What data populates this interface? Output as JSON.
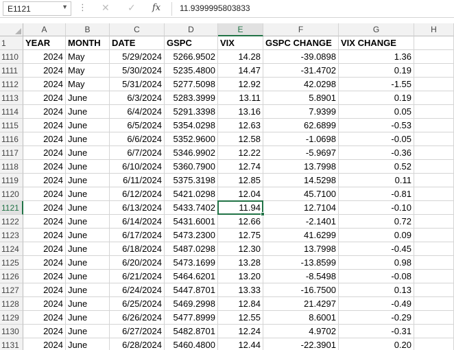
{
  "formula_bar": {
    "name_box": "E1121",
    "value": "11.9399995803833",
    "fx_label": "fx"
  },
  "columns": [
    "A",
    "B",
    "C",
    "D",
    "E",
    "F",
    "G",
    "H"
  ],
  "active_column": "E",
  "active_row": "1121",
  "header_row": {
    "row_number": "1",
    "cells": [
      "YEAR",
      "MONTH",
      "DATE",
      "GSPC",
      "VIX",
      "GSPC CHANGE",
      "VIX CHANGE",
      ""
    ]
  },
  "rows": [
    {
      "n": "1110",
      "year": "2024",
      "month": "May",
      "date": "5/29/2024",
      "gspc": "5266.9502",
      "vix": "14.28",
      "gspc_change": "-39.0898",
      "vix_change": "1.36"
    },
    {
      "n": "1111",
      "year": "2024",
      "month": "May",
      "date": "5/30/2024",
      "gspc": "5235.4800",
      "vix": "14.47",
      "gspc_change": "-31.4702",
      "vix_change": "0.19"
    },
    {
      "n": "1112",
      "year": "2024",
      "month": "May",
      "date": "5/31/2024",
      "gspc": "5277.5098",
      "vix": "12.92",
      "gspc_change": "42.0298",
      "vix_change": "-1.55"
    },
    {
      "n": "1113",
      "year": "2024",
      "month": "June",
      "date": "6/3/2024",
      "gspc": "5283.3999",
      "vix": "13.11",
      "gspc_change": "5.8901",
      "vix_change": "0.19"
    },
    {
      "n": "1114",
      "year": "2024",
      "month": "June",
      "date": "6/4/2024",
      "gspc": "5291.3398",
      "vix": "13.16",
      "gspc_change": "7.9399",
      "vix_change": "0.05"
    },
    {
      "n": "1115",
      "year": "2024",
      "month": "June",
      "date": "6/5/2024",
      "gspc": "5354.0298",
      "vix": "12.63",
      "gspc_change": "62.6899",
      "vix_change": "-0.53"
    },
    {
      "n": "1116",
      "year": "2024",
      "month": "June",
      "date": "6/6/2024",
      "gspc": "5352.9600",
      "vix": "12.58",
      "gspc_change": "-1.0698",
      "vix_change": "-0.05"
    },
    {
      "n": "1117",
      "year": "2024",
      "month": "June",
      "date": "6/7/2024",
      "gspc": "5346.9902",
      "vix": "12.22",
      "gspc_change": "-5.9697",
      "vix_change": "-0.36"
    },
    {
      "n": "1118",
      "year": "2024",
      "month": "June",
      "date": "6/10/2024",
      "gspc": "5360.7900",
      "vix": "12.74",
      "gspc_change": "13.7998",
      "vix_change": "0.52"
    },
    {
      "n": "1119",
      "year": "2024",
      "month": "June",
      "date": "6/11/2024",
      "gspc": "5375.3198",
      "vix": "12.85",
      "gspc_change": "14.5298",
      "vix_change": "0.11"
    },
    {
      "n": "1120",
      "year": "2024",
      "month": "June",
      "date": "6/12/2024",
      "gspc": "5421.0298",
      "vix": "12.04",
      "gspc_change": "45.7100",
      "vix_change": "-0.81"
    },
    {
      "n": "1121",
      "year": "2024",
      "month": "June",
      "date": "6/13/2024",
      "gspc": "5433.7402",
      "vix": "11.94",
      "gspc_change": "12.7104",
      "vix_change": "-0.10"
    },
    {
      "n": "1122",
      "year": "2024",
      "month": "June",
      "date": "6/14/2024",
      "gspc": "5431.6001",
      "vix": "12.66",
      "gspc_change": "-2.1401",
      "vix_change": "0.72"
    },
    {
      "n": "1123",
      "year": "2024",
      "month": "June",
      "date": "6/17/2024",
      "gspc": "5473.2300",
      "vix": "12.75",
      "gspc_change": "41.6299",
      "vix_change": "0.09"
    },
    {
      "n": "1124",
      "year": "2024",
      "month": "June",
      "date": "6/18/2024",
      "gspc": "5487.0298",
      "vix": "12.30",
      "gspc_change": "13.7998",
      "vix_change": "-0.45"
    },
    {
      "n": "1125",
      "year": "2024",
      "month": "June",
      "date": "6/20/2024",
      "gspc": "5473.1699",
      "vix": "13.28",
      "gspc_change": "-13.8599",
      "vix_change": "0.98"
    },
    {
      "n": "1126",
      "year": "2024",
      "month": "June",
      "date": "6/21/2024",
      "gspc": "5464.6201",
      "vix": "13.20",
      "gspc_change": "-8.5498",
      "vix_change": "-0.08"
    },
    {
      "n": "1127",
      "year": "2024",
      "month": "June",
      "date": "6/24/2024",
      "gspc": "5447.8701",
      "vix": "13.33",
      "gspc_change": "-16.7500",
      "vix_change": "0.13"
    },
    {
      "n": "1128",
      "year": "2024",
      "month": "June",
      "date": "6/25/2024",
      "gspc": "5469.2998",
      "vix": "12.84",
      "gspc_change": "21.4297",
      "vix_change": "-0.49"
    },
    {
      "n": "1129",
      "year": "2024",
      "month": "June",
      "date": "6/26/2024",
      "gspc": "5477.8999",
      "vix": "12.55",
      "gspc_change": "8.6001",
      "vix_change": "-0.29"
    },
    {
      "n": "1130",
      "year": "2024",
      "month": "June",
      "date": "6/27/2024",
      "gspc": "5482.8701",
      "vix": "12.24",
      "gspc_change": "4.9702",
      "vix_change": "-0.31"
    },
    {
      "n": "1131",
      "year": "2024",
      "month": "June",
      "date": "6/28/2024",
      "gspc": "5460.4800",
      "vix": "12.44",
      "gspc_change": "-22.3901",
      "vix_change": "0.20"
    }
  ],
  "theme": {
    "accent": "#217346",
    "header_bg": "#f2f2f2",
    "gridline": "#d4d4d4"
  }
}
